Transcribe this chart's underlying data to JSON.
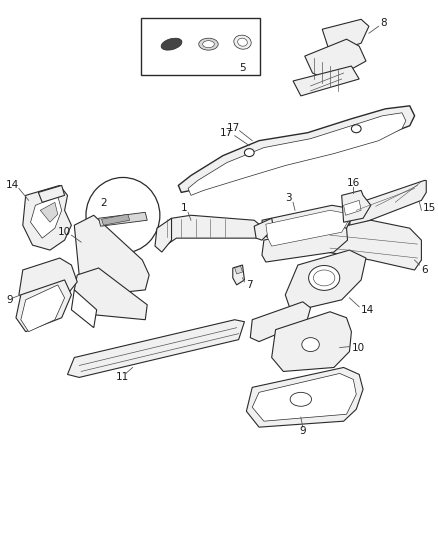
{
  "bg_color": "#ffffff",
  "lc": "#2a2a2a",
  "lc2": "#555555",
  "fc_white": "#ffffff",
  "fc_light": "#f0f0f0",
  "fc_mid": "#d8d8d8",
  "fc_dark": "#b0b0b0",
  "fig_width": 4.38,
  "fig_height": 5.33,
  "dpi": 100,
  "label_fs": 7.5
}
